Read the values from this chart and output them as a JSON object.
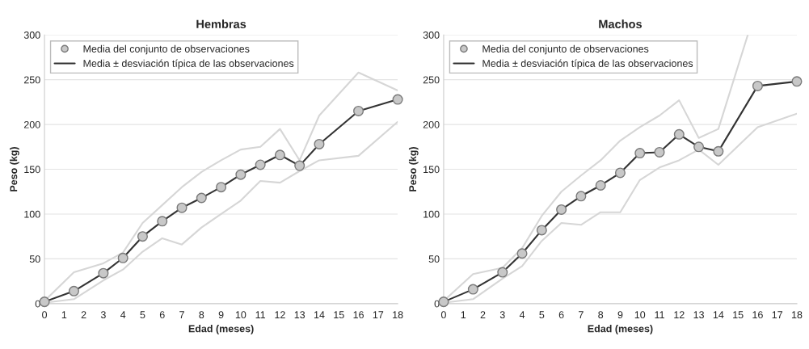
{
  "chart_data": [
    {
      "type": "line",
      "title": "Hembras",
      "xlabel": "Edad (meses)",
      "ylabel": "Peso (kg)",
      "x": [
        0,
        1.5,
        3,
        4,
        5,
        6,
        7,
        8,
        9,
        10,
        11,
        12,
        13,
        14,
        16,
        18
      ],
      "series": [
        {
          "name": "Media del conjunto de observaciones",
          "type": "scatter",
          "color": "#c8c8c8",
          "marker": "circle",
          "values": [
            2,
            14,
            34,
            51,
            75,
            92,
            107,
            118,
            130,
            144,
            155,
            166,
            154,
            178,
            215,
            228
          ]
        },
        {
          "name": "Media ± desviación típica de las observaciones",
          "type": "line",
          "color": "#333333",
          "values": [
            2,
            14,
            34,
            51,
            75,
            92,
            107,
            118,
            130,
            144,
            155,
            166,
            154,
            178,
            215,
            228
          ]
        },
        {
          "color": "#d6d6d6",
          "values": [
            3,
            35,
            45,
            57,
            90,
            110,
            130,
            147,
            160,
            172,
            175,
            195,
            160,
            210,
            258,
            238
          ]
        },
        {
          "color": "#d6d6d6",
          "values": [
            1,
            5,
            26,
            38,
            58,
            73,
            66,
            85,
            100,
            115,
            137,
            135,
            148,
            160,
            165,
            203
          ]
        }
      ],
      "xlim": [
        0,
        18
      ],
      "xticks": [
        0,
        1,
        2,
        3,
        4,
        5,
        6,
        7,
        8,
        9,
        10,
        11,
        12,
        13,
        14,
        15,
        16,
        17,
        18
      ],
      "ylim": [
        0,
        300
      ],
      "yticks": [
        0,
        50,
        100,
        150,
        200,
        250,
        300
      ],
      "grid": "y",
      "legend": "top left"
    },
    {
      "type": "line",
      "title": "Machos",
      "xlabel": "Edad (meses)",
      "ylabel": "Peso (kg)",
      "x": [
        0,
        1.5,
        3,
        4,
        5,
        6,
        7,
        8,
        9,
        10,
        11,
        12,
        13,
        14,
        16,
        18
      ],
      "series": [
        {
          "name": "Media del conjunto de observaciones",
          "type": "scatter",
          "color": "#c8c8c8",
          "marker": "circle",
          "values": [
            2,
            16,
            35,
            56,
            82,
            105,
            120,
            132,
            146,
            168,
            169,
            189,
            175,
            170,
            243,
            248
          ]
        },
        {
          "name": "Media ± desviación típica de las observaciones",
          "type": "line",
          "color": "#333333",
          "values": [
            2,
            16,
            35,
            56,
            82,
            105,
            120,
            132,
            146,
            168,
            169,
            189,
            175,
            170,
            243,
            248
          ]
        },
        {
          "color": "#d6d6d6",
          "x": [
            0,
            1.5,
            3,
            4,
            5,
            6,
            7,
            8,
            9,
            10,
            11,
            12,
            13,
            14,
            15.5
          ],
          "values": [
            3,
            33,
            40,
            62,
            98,
            125,
            143,
            160,
            182,
            197,
            210,
            227,
            185,
            195,
            300
          ]
        },
        {
          "color": "#d6d6d6",
          "values": [
            1,
            5,
            28,
            42,
            70,
            90,
            88,
            102,
            102,
            138,
            152,
            160,
            172,
            155,
            197,
            212
          ]
        }
      ],
      "xlim": [
        0,
        18
      ],
      "xticks": [
        0,
        1,
        2,
        3,
        4,
        5,
        6,
        7,
        8,
        9,
        10,
        11,
        12,
        13,
        14,
        15,
        16,
        17,
        18
      ],
      "ylim": [
        0,
        300
      ],
      "yticks": [
        0,
        50,
        100,
        150,
        200,
        250,
        300
      ],
      "grid": "y",
      "legend": "top left"
    }
  ]
}
